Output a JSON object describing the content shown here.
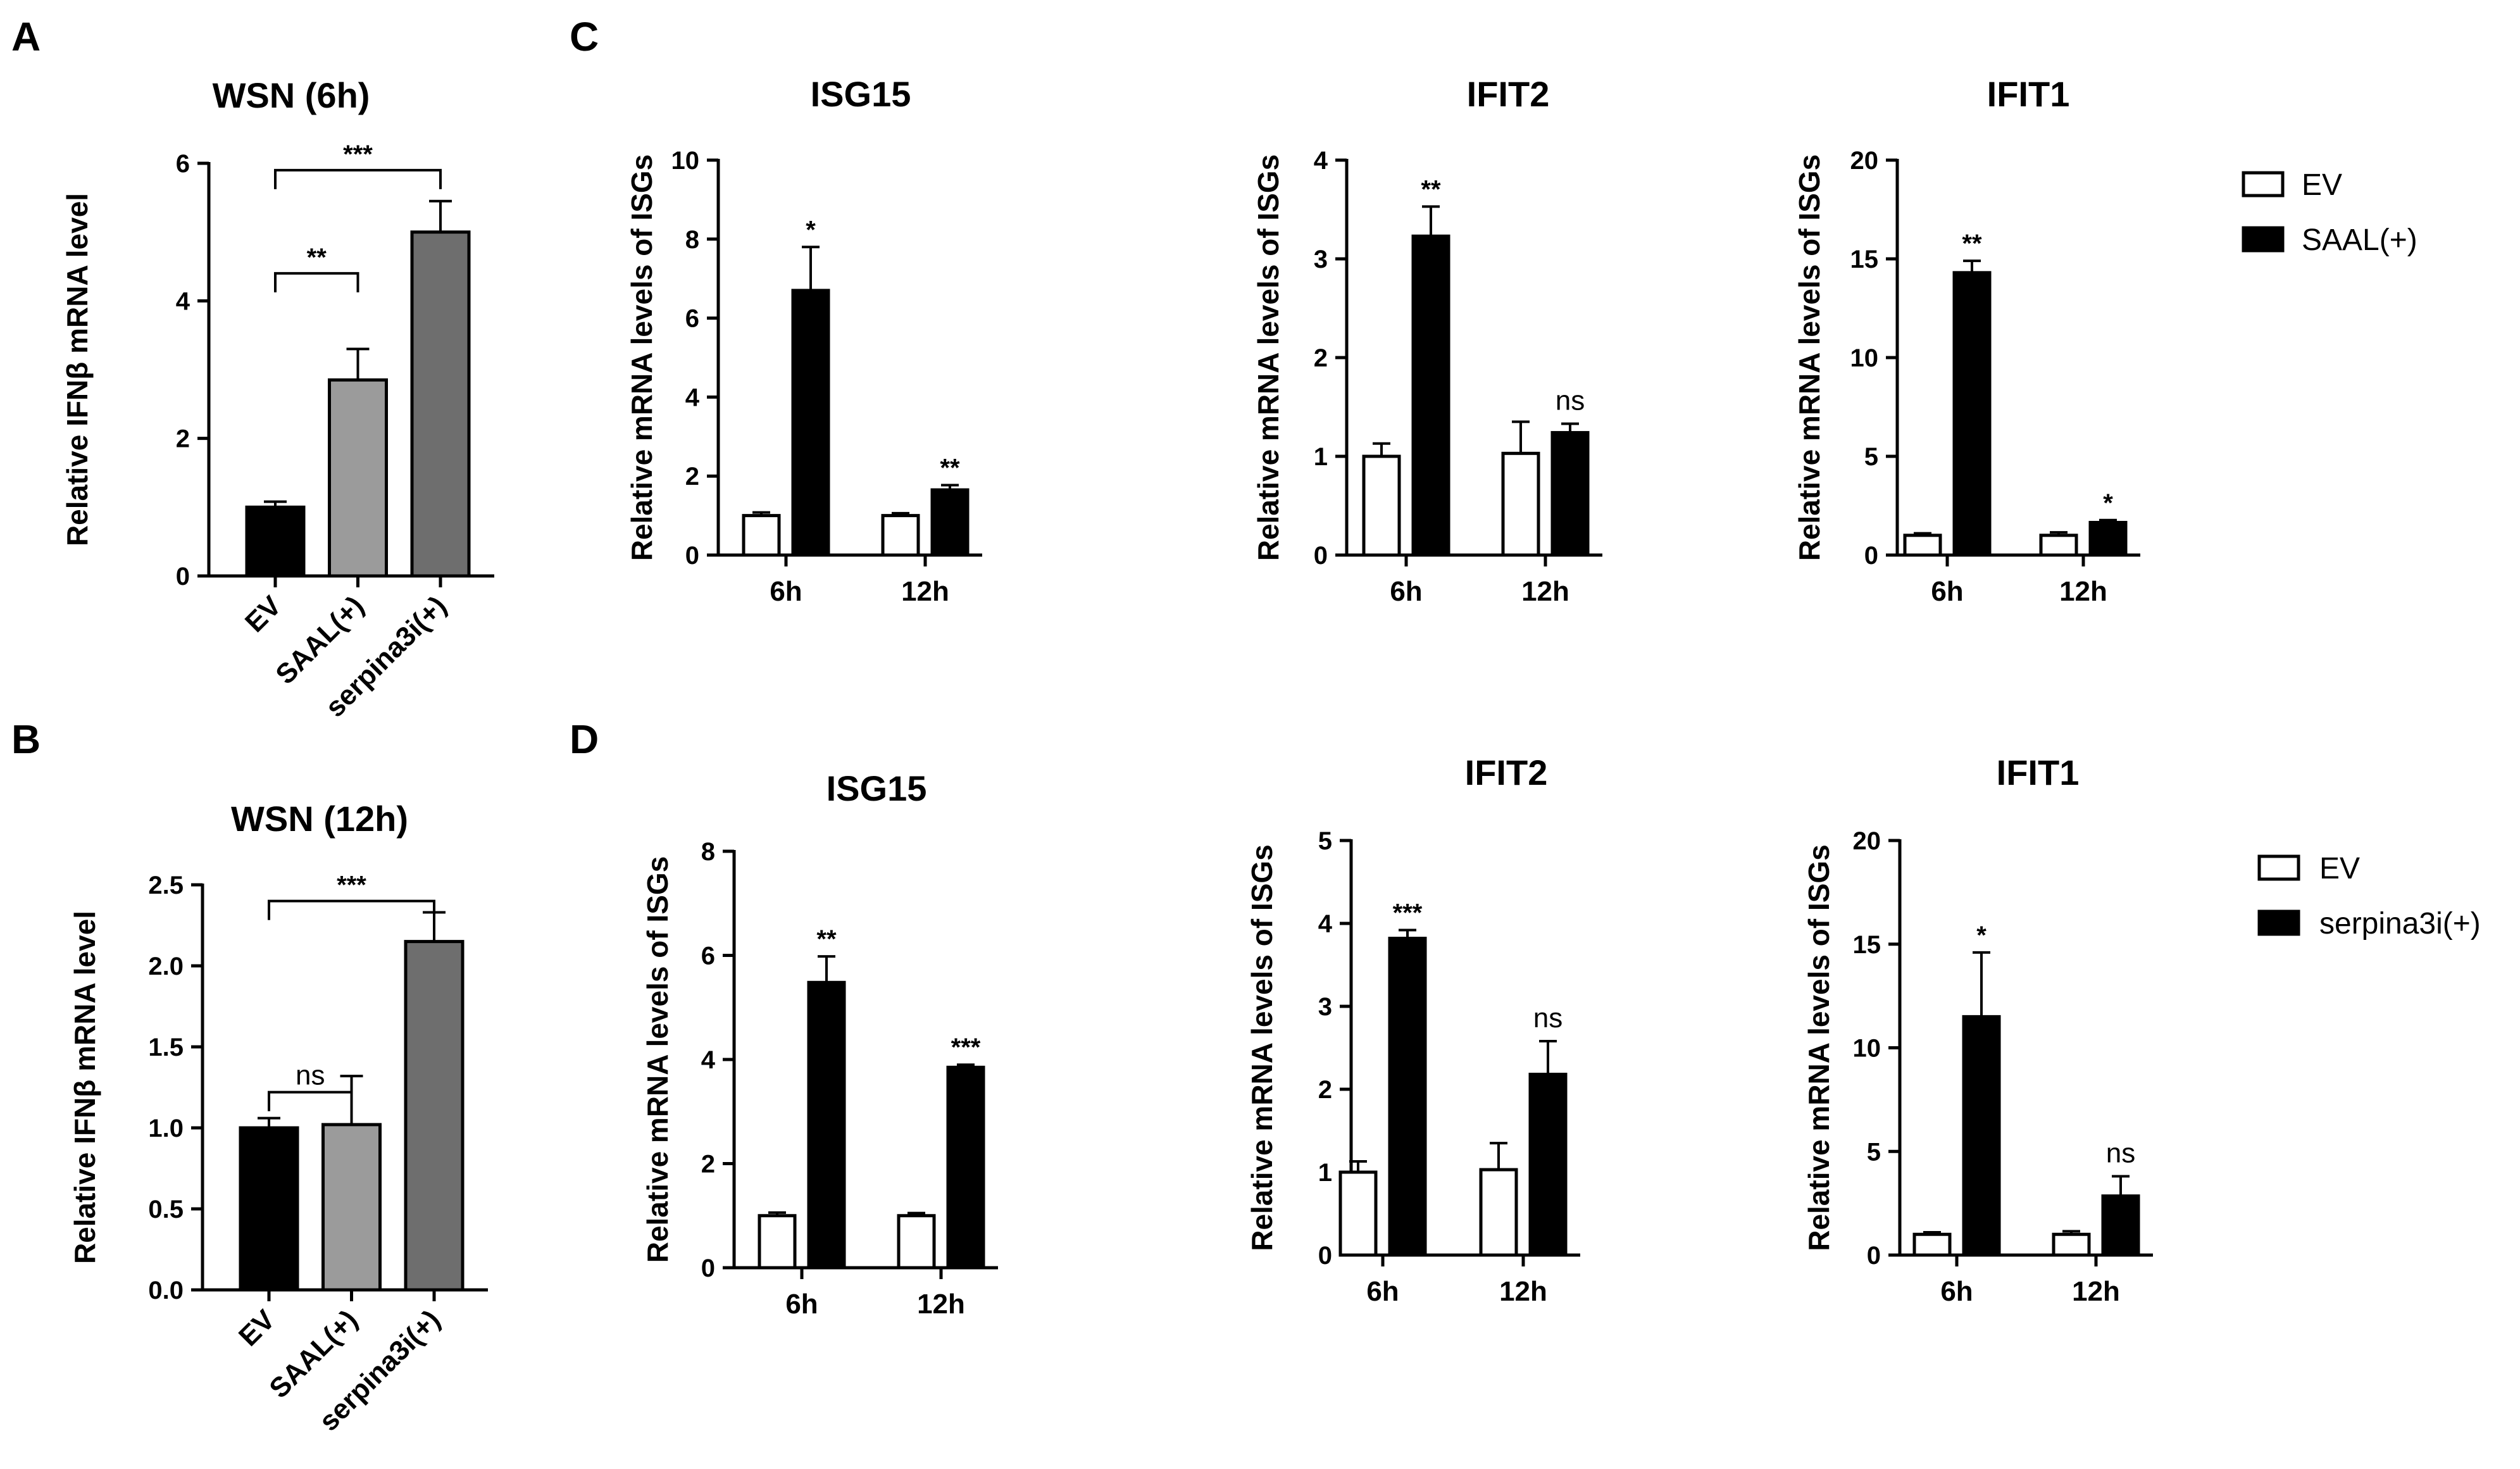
{
  "panel_labels": [
    "A",
    "B",
    "C",
    "D"
  ],
  "colors": {
    "ev": "#000000",
    "ev_fill_grouped": "#ffffff",
    "saal": "#9b9b9b",
    "serpina3i": "#6e6e6e",
    "treated_grouped": "#000000",
    "axis": "#000000"
  },
  "chart_data": [
    {
      "id": "A",
      "type": "bar",
      "title": "WSN (6h)",
      "ylabel": "Relative IFNβ mRNA level",
      "categories": [
        "EV",
        "SAAL(+)",
        "serpina3i(+)"
      ],
      "values": [
        1.0,
        2.85,
        5.0
      ],
      "errors": [
        0.08,
        0.45,
        0.45
      ],
      "fills": [
        "#000000",
        "#9b9b9b",
        "#6e6e6e"
      ],
      "ylim": [
        0,
        6
      ],
      "yticks": [
        0,
        2,
        4,
        6
      ],
      "ytick_labels": [
        "0",
        "2",
        "4",
        "6"
      ],
      "brackets": [
        {
          "from": 0,
          "to": 1,
          "label": "**",
          "level": 4.4
        },
        {
          "from": 0,
          "to": 2,
          "label": "***",
          "level": 5.9
        }
      ]
    },
    {
      "id": "B",
      "type": "bar",
      "title": "WSN (12h)",
      "ylabel": "Relative IFNβ mRNA level",
      "categories": [
        "EV",
        "SAAL(+)",
        "serpina3i(+)"
      ],
      "values": [
        1.0,
        1.02,
        2.15
      ],
      "errors": [
        0.06,
        0.3,
        0.18
      ],
      "fills": [
        "#000000",
        "#9b9b9b",
        "#6e6e6e"
      ],
      "ylim": [
        0,
        2.5
      ],
      "yticks": [
        0,
        0.5,
        1.0,
        1.5,
        2.0,
        2.5
      ],
      "ytick_labels": [
        "0.0",
        "0.5",
        "1.0",
        "1.5",
        "2.0",
        "2.5"
      ],
      "brackets": [
        {
          "from": 0,
          "to": 1,
          "label": "ns",
          "level": 1.22
        },
        {
          "from": 0,
          "to": 2,
          "label": "***",
          "level": 2.4
        }
      ]
    },
    {
      "id": "C1",
      "type": "bar",
      "title": "ISG15",
      "ylabel": "Relative mRNA levels of ISGs",
      "categories": [
        "6h",
        "12h"
      ],
      "series": [
        {
          "name": "EV",
          "values": [
            1.0,
            1.0
          ],
          "errors": [
            0.08,
            0.06
          ]
        },
        {
          "name": "SAAL(+)",
          "values": [
            6.7,
            1.65
          ],
          "errors": [
            1.1,
            0.12
          ]
        }
      ],
      "significance": [
        "*",
        "**"
      ],
      "ylim": [
        0,
        10
      ],
      "yticks": [
        0,
        2,
        4,
        6,
        8,
        10
      ],
      "ytick_labels": [
        "0",
        "2",
        "4",
        "6",
        "8",
        "10"
      ]
    },
    {
      "id": "C2",
      "type": "bar",
      "title": "IFIT2",
      "ylabel": "Relative mRNA levels of ISGs",
      "categories": [
        "6h",
        "12h"
      ],
      "series": [
        {
          "name": "EV",
          "values": [
            1.0,
            1.03
          ],
          "errors": [
            0.13,
            0.32
          ]
        },
        {
          "name": "SAAL(+)",
          "values": [
            3.23,
            1.24
          ],
          "errors": [
            0.3,
            0.09
          ]
        }
      ],
      "significance": [
        "**",
        "ns"
      ],
      "ylim": [
        0,
        4
      ],
      "yticks": [
        0,
        1,
        2,
        3,
        4
      ],
      "ytick_labels": [
        "0",
        "1",
        "2",
        "3",
        "4"
      ]
    },
    {
      "id": "C3",
      "type": "bar",
      "title": "IFIT1",
      "ylabel": "Relative mRNA levels of ISGs",
      "categories": [
        "6h",
        "12h"
      ],
      "series": [
        {
          "name": "EV",
          "values": [
            1.0,
            1.0
          ],
          "errors": [
            0.1,
            0.15
          ]
        },
        {
          "name": "SAAL(+)",
          "values": [
            14.3,
            1.65
          ],
          "errors": [
            0.6,
            0.12
          ]
        }
      ],
      "significance": [
        "**",
        "*"
      ],
      "ylim": [
        0,
        20
      ],
      "yticks": [
        0,
        5,
        10,
        15,
        20
      ],
      "ytick_labels": [
        "0",
        "5",
        "10",
        "15",
        "20"
      ]
    },
    {
      "id": "D1",
      "type": "bar",
      "title": "ISG15",
      "ylabel": "Relative mRNA levels of ISGs",
      "categories": [
        "6h",
        "12h"
      ],
      "series": [
        {
          "name": "EV",
          "values": [
            1.0,
            1.0
          ],
          "errors": [
            0.06,
            0.05
          ]
        },
        {
          "name": "serpina3i(+)",
          "values": [
            5.48,
            3.85
          ],
          "errors": [
            0.5,
            0.05
          ]
        }
      ],
      "significance": [
        "**",
        "***"
      ],
      "ylim": [
        0,
        8
      ],
      "yticks": [
        0,
        2,
        4,
        6,
        8
      ],
      "ytick_labels": [
        "0",
        "2",
        "4",
        "6",
        "8"
      ]
    },
    {
      "id": "D2",
      "type": "bar",
      "title": "IFIT2",
      "ylabel": "Relative mRNA levels of ISGs",
      "categories": [
        "6h",
        "12h"
      ],
      "series": [
        {
          "name": "EV",
          "values": [
            1.0,
            1.03
          ],
          "errors": [
            0.13,
            0.32
          ]
        },
        {
          "name": "serpina3i(+)",
          "values": [
            3.82,
            2.18
          ],
          "errors": [
            0.1,
            0.4
          ]
        }
      ],
      "significance": [
        "***",
        "ns"
      ],
      "ylim": [
        0,
        5
      ],
      "yticks": [
        0,
        1,
        2,
        3,
        4,
        5
      ],
      "ytick_labels": [
        "0",
        "1",
        "2",
        "3",
        "4",
        "5"
      ]
    },
    {
      "id": "D3",
      "type": "bar",
      "title": "IFIT1",
      "ylabel": "Relative mRNA levels of ISGs",
      "categories": [
        "6h",
        "12h"
      ],
      "series": [
        {
          "name": "EV",
          "values": [
            1.0,
            1.0
          ],
          "errors": [
            0.1,
            0.15
          ]
        },
        {
          "name": "serpina3i(+)",
          "values": [
            11.5,
            2.85
          ],
          "errors": [
            3.1,
            0.95
          ]
        }
      ],
      "significance": [
        "*",
        "ns"
      ],
      "ylim": [
        0,
        20
      ],
      "yticks": [
        0,
        5,
        10,
        15,
        20
      ],
      "ytick_labels": [
        "0",
        "5",
        "10",
        "15",
        "20"
      ]
    }
  ],
  "legends": [
    {
      "id": "C",
      "items": [
        {
          "label": "EV",
          "style": "open"
        },
        {
          "label": "SAAL(+)",
          "style": "filled"
        }
      ]
    },
    {
      "id": "D",
      "items": [
        {
          "label": "EV",
          "style": "open"
        },
        {
          "label": "serpina3i(+)",
          "style": "filled"
        }
      ]
    }
  ]
}
